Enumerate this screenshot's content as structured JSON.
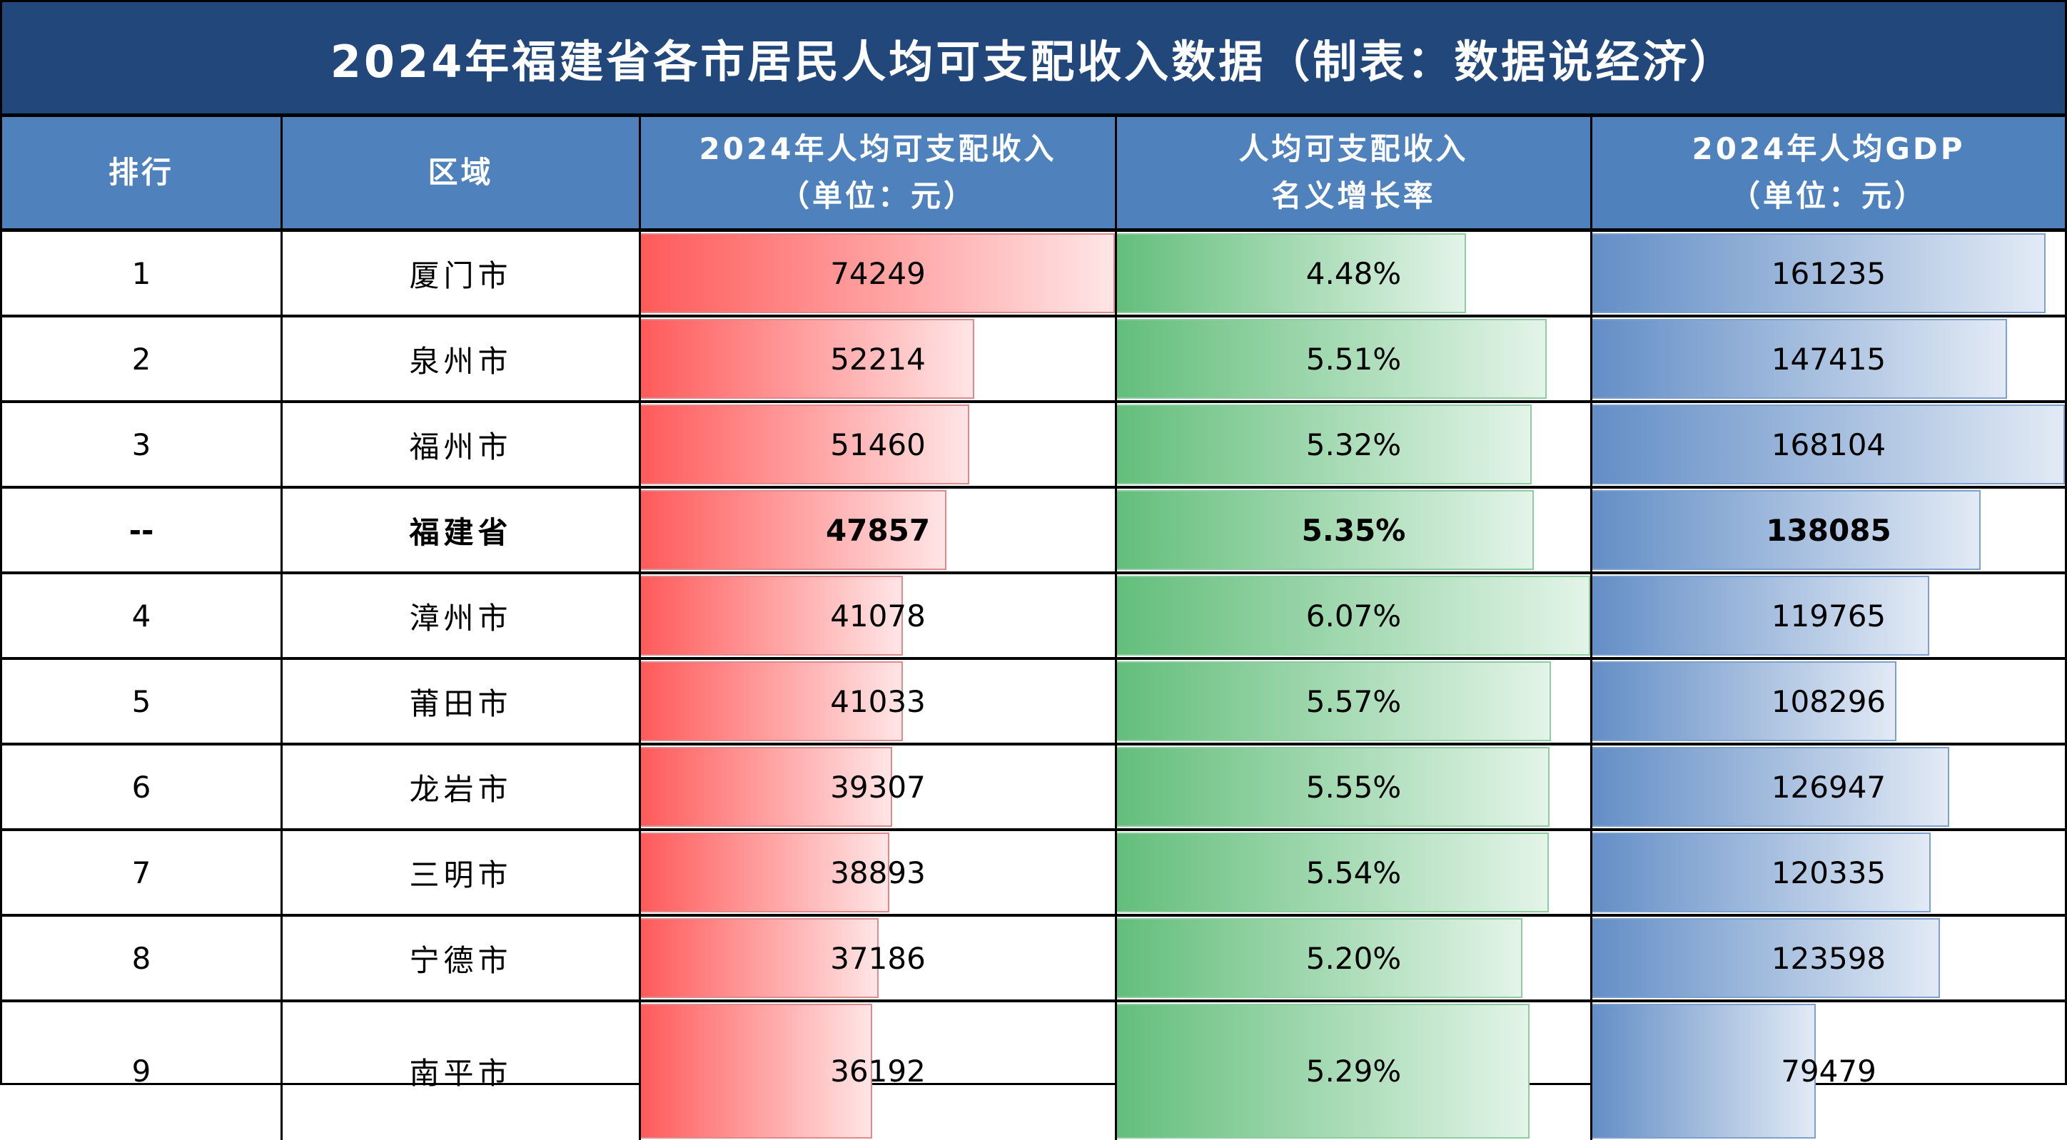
{
  "title": "2024年福建省各市居民人均可支配收入数据（制表：数据说经济）",
  "headers": {
    "rank": "排行",
    "region": "区域",
    "income_line1": "2024年人均可支配收入",
    "income_line2": "（单位：元）",
    "growth_line1": "人均可支配收入",
    "growth_line2": "名义增长率",
    "gdp_line1": "2024年人均GDP",
    "gdp_line2": "（单位：元）"
  },
  "colors": {
    "title_bg": "#21477B",
    "header_bg": "#4F81BD",
    "income_bar": "#FF5A5A",
    "growth_bar": "#63BE7B",
    "gdp_bar": "#638EC6"
  },
  "rows": [
    {
      "rank": "1",
      "region": "厦门市",
      "income": "74249",
      "growth": "4.48%",
      "gdp": "161235",
      "bold": false
    },
    {
      "rank": "2",
      "region": "泉州市",
      "income": "52214",
      "growth": "5.51%",
      "gdp": "147415",
      "bold": false
    },
    {
      "rank": "3",
      "region": "福州市",
      "income": "51460",
      "growth": "5.32%",
      "gdp": "168104",
      "bold": false
    },
    {
      "rank": "--",
      "region": "福建省",
      "income": "47857",
      "growth": "5.35%",
      "gdp": "138085",
      "bold": true
    },
    {
      "rank": "4",
      "region": "漳州市",
      "income": "41078",
      "growth": "6.07%",
      "gdp": "119765",
      "bold": false
    },
    {
      "rank": "5",
      "region": "莆田市",
      "income": "41033",
      "growth": "5.57%",
      "gdp": "108296",
      "bold": false
    },
    {
      "rank": "6",
      "region": "龙岩市",
      "income": "39307",
      "growth": "5.55%",
      "gdp": "126947",
      "bold": false
    },
    {
      "rank": "7",
      "region": "三明市",
      "income": "38893",
      "growth": "5.54%",
      "gdp": "120335",
      "bold": false
    },
    {
      "rank": "8",
      "region": "宁德市",
      "income": "37186",
      "growth": "5.20%",
      "gdp": "123598",
      "bold": false
    },
    {
      "rank": "9",
      "region": "南平市",
      "income": "36192",
      "growth": "5.29%",
      "gdp": "79479",
      "bold": false
    }
  ],
  "chart_data": {
    "type": "table",
    "title": "2024年福建省各市居民人均可支配收入数据（制表：数据说经济）",
    "columns": [
      "排行",
      "区域",
      "2024年人均可支配收入（单位：元）",
      "人均可支配收入名义增长率",
      "2024年人均GDP（单位：元）"
    ],
    "categories": [
      "厦门市",
      "泉州市",
      "福州市",
      "福建省",
      "漳州市",
      "莆田市",
      "龙岩市",
      "三明市",
      "宁德市",
      "南平市"
    ],
    "series": [
      {
        "name": "2024年人均可支配收入（元）",
        "values": [
          74249,
          52214,
          51460,
          47857,
          41078,
          41033,
          39307,
          38893,
          37186,
          36192
        ]
      },
      {
        "name": "人均可支配收入名义增长率（%）",
        "values": [
          4.48,
          5.51,
          5.32,
          5.35,
          6.07,
          5.57,
          5.55,
          5.54,
          5.2,
          5.29
        ]
      },
      {
        "name": "2024年人均GDP（元）",
        "values": [
          161235,
          147415,
          168104,
          138085,
          119765,
          108296,
          126947,
          120335,
          123598,
          79479
        ]
      }
    ],
    "ranks": [
      "1",
      "2",
      "3",
      "--",
      "4",
      "5",
      "6",
      "7",
      "8",
      "9"
    ],
    "data_bars": {
      "income_max": 74249,
      "growth_max": 6.07,
      "gdp_max": 168104
    }
  }
}
